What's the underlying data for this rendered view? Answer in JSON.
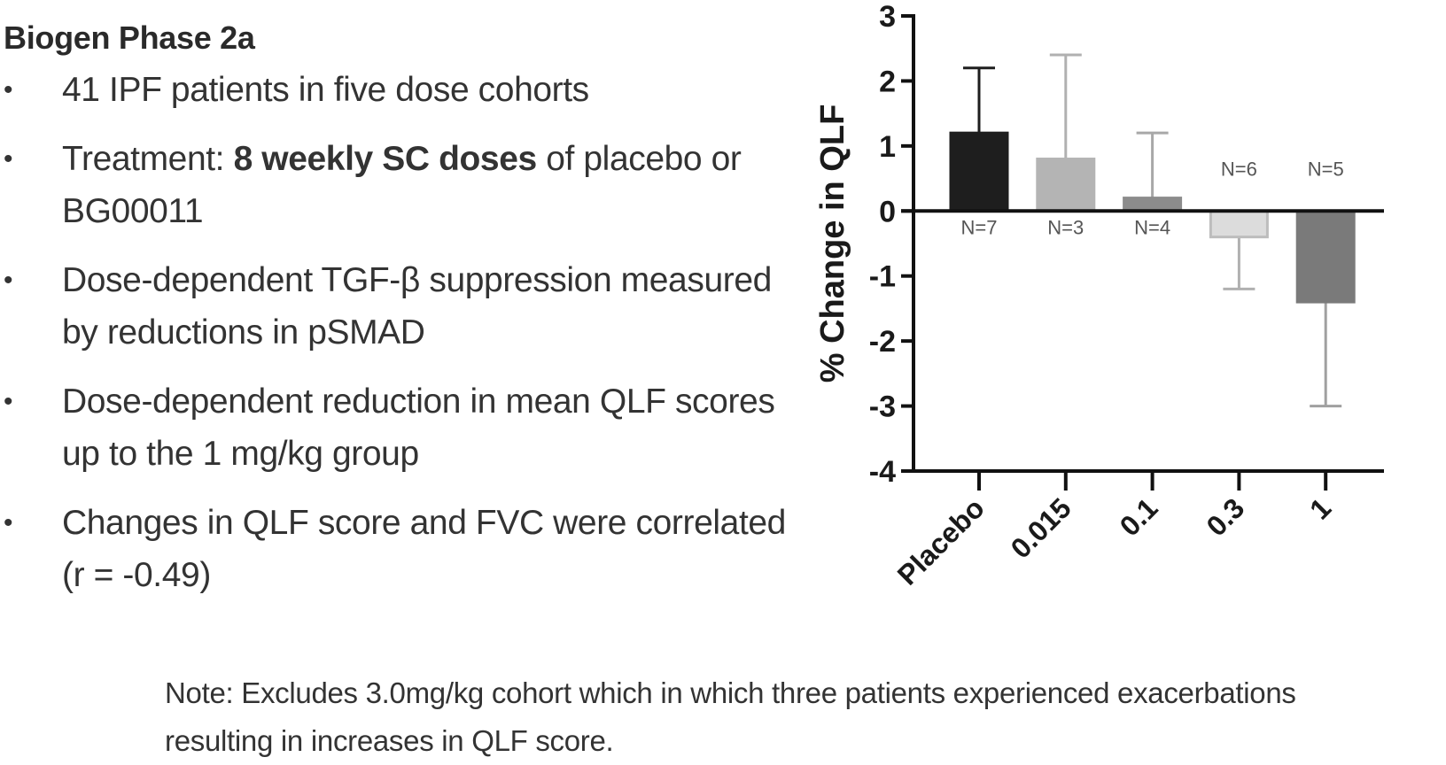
{
  "text_panel": {
    "heading": "Biogen Phase 2a",
    "bullets": [
      {
        "parts": [
          {
            "text": "41 IPF patients in five dose cohorts",
            "bold": false
          }
        ]
      },
      {
        "parts": [
          {
            "text": "Treatment: ",
            "bold": false
          },
          {
            "text": "8 weekly SC doses",
            "bold": true
          },
          {
            "text": " of placebo or BG00011",
            "bold": false
          }
        ]
      },
      {
        "parts": [
          {
            "text": "Dose-dependent TGF-β suppression measured by reductions in pSMAD",
            "bold": false
          }
        ]
      },
      {
        "parts": [
          {
            "text": "Dose-dependent reduction in mean QLF scores up to the 1 mg/kg group",
            "bold": false
          }
        ]
      },
      {
        "parts": [
          {
            "text": "Changes in QLF score and FVC were correlated (r = -0.49)",
            "bold": false
          }
        ]
      }
    ],
    "bullet_glyph": "•"
  },
  "note": "Note: Excludes 3.0mg/kg cohort which in which three patients experienced exacerbations resulting in increases in QLF score.",
  "chart_data": {
    "type": "bar",
    "title": "",
    "xlabel": "",
    "ylabel": "% Change in QLF",
    "ylim": [
      -4,
      3
    ],
    "yticks": [
      3,
      2,
      1,
      0,
      -1,
      -2,
      -3,
      -4
    ],
    "grid": false,
    "legend": "none",
    "categories": [
      "Placebo",
      "0.015",
      "0.1",
      "0.3",
      "1"
    ],
    "values": [
      1.2,
      0.8,
      0.2,
      -0.4,
      -1.4
    ],
    "error_ends": [
      2.2,
      2.4,
      1.2,
      -1.2,
      -3.0
    ],
    "n_labels": [
      "N=7",
      "N=3",
      "N=4",
      "N=6",
      "N=5"
    ],
    "bar_colors": [
      "#1e1e1e",
      "#b4b4b4",
      "#8c8c8c",
      "#dcdcdc",
      "#7a7a7a"
    ],
    "bar_edge_colors": [
      "#1e1e1e",
      "#b4b4b4",
      "#8c8c8c",
      "#bdbdbd",
      "#7a7a7a"
    ],
    "error_colors": [
      "#1e1e1e",
      "#b0b0b0",
      "#a8a8a8",
      "#b0b0b0",
      "#a0a0a0"
    ]
  }
}
